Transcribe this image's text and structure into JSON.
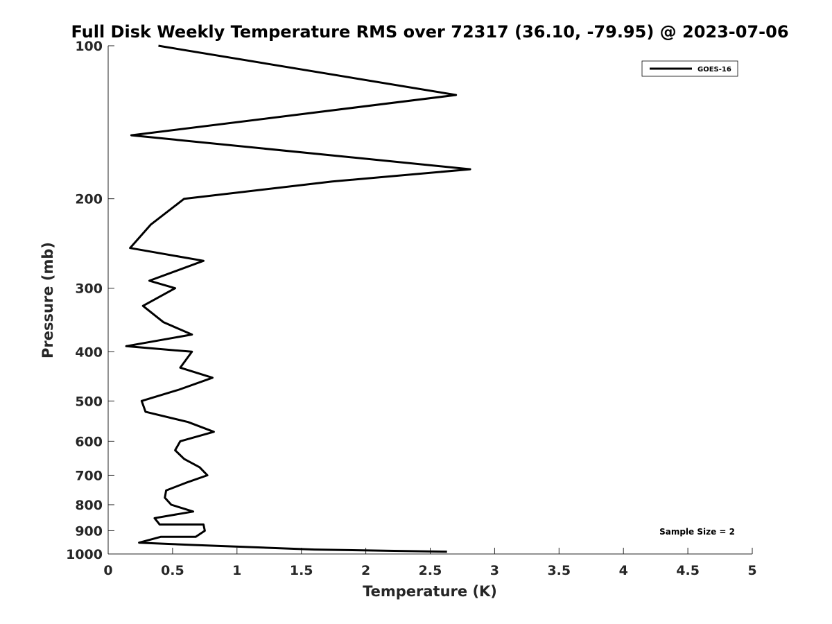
{
  "chart_data": {
    "type": "line",
    "title": "Full Disk Weekly Temperature RMS over 72317 (36.10, -79.95) @ 2023-07-06",
    "xlabel": "Temperature (K)",
    "ylabel": "Pressure (mb)",
    "xlim": [
      0,
      5
    ],
    "ylim": [
      100,
      1000
    ],
    "y_scale": "log",
    "y_reversed": true,
    "x_ticks": [
      "0",
      "0.5",
      "1",
      "1.5",
      "2",
      "2.5",
      "3",
      "3.5",
      "4",
      "4.5",
      "5"
    ],
    "y_ticks": [
      "100",
      "200",
      "300",
      "400",
      "500",
      "600",
      "700",
      "800",
      "900",
      "1000"
    ],
    "legend_position": "top-right",
    "grid": false,
    "annotation": "Sample Size = 2",
    "series": [
      {
        "name": "GOES-16",
        "color": "#000000",
        "points": [
          [
            0.39,
            100
          ],
          [
            2.7,
            125
          ],
          [
            0.18,
            150
          ],
          [
            2.81,
            175
          ],
          [
            1.74,
            185
          ],
          [
            0.59,
            200
          ],
          [
            0.33,
            225
          ],
          [
            0.17,
            250
          ],
          [
            0.74,
            265
          ],
          [
            0.32,
            290
          ],
          [
            0.52,
            300
          ],
          [
            0.27,
            325
          ],
          [
            0.43,
            350
          ],
          [
            0.65,
            370
          ],
          [
            0.14,
            390
          ],
          [
            0.65,
            400
          ],
          [
            0.56,
            430
          ],
          [
            0.81,
            450
          ],
          [
            0.55,
            475
          ],
          [
            0.26,
            500
          ],
          [
            0.29,
            525
          ],
          [
            0.62,
            550
          ],
          [
            0.82,
            575
          ],
          [
            0.56,
            600
          ],
          [
            0.52,
            625
          ],
          [
            0.59,
            650
          ],
          [
            0.71,
            675
          ],
          [
            0.77,
            700
          ],
          [
            0.6,
            725
          ],
          [
            0.45,
            750
          ],
          [
            0.44,
            775
          ],
          [
            0.49,
            800
          ],
          [
            0.66,
            825
          ],
          [
            0.36,
            850
          ],
          [
            0.4,
            875
          ],
          [
            0.74,
            875
          ],
          [
            0.75,
            900
          ],
          [
            0.68,
            925
          ],
          [
            0.41,
            925
          ],
          [
            0.24,
            950
          ],
          [
            0.66,
            960
          ],
          [
            1.6,
            980
          ],
          [
            2.63,
            990
          ]
        ]
      }
    ]
  }
}
